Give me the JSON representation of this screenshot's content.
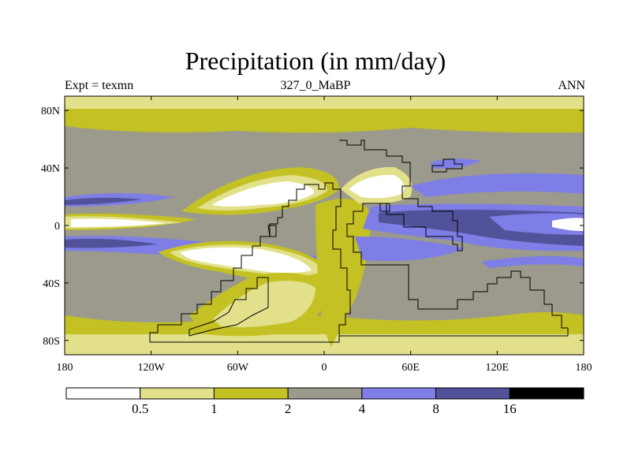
{
  "title": "Precipitation (in mm/day)",
  "subtitle_left": "Expt = texmn",
  "subtitle_center": "327_0_MaBP",
  "subtitle_right": "ANN",
  "y_ticks": [
    {
      "label": "80N",
      "lat": 80
    },
    {
      "label": "40N",
      "lat": 40
    },
    {
      "label": "0",
      "lat": 0
    },
    {
      "label": "40S",
      "lat": -40
    },
    {
      "label": "80S",
      "lat": -80
    }
  ],
  "x_ticks": [
    {
      "label": "180",
      "lon": -180
    },
    {
      "label": "120W",
      "lon": -120
    },
    {
      "label": "60W",
      "lon": -60
    },
    {
      "label": "0",
      "lon": 0
    },
    {
      "label": "60E",
      "lon": 60
    },
    {
      "label": "120E",
      "lon": 120
    },
    {
      "label": "180",
      "lon": 180
    }
  ],
  "colorbar": {
    "colors": [
      "#ffffff",
      "#e2e08a",
      "#c3c124",
      "#9b9a8c",
      "#7e7ee6",
      "#52529a",
      "#000000"
    ],
    "labels": [
      "0.5",
      "1",
      "2",
      "4",
      "8",
      "16"
    ]
  }
}
